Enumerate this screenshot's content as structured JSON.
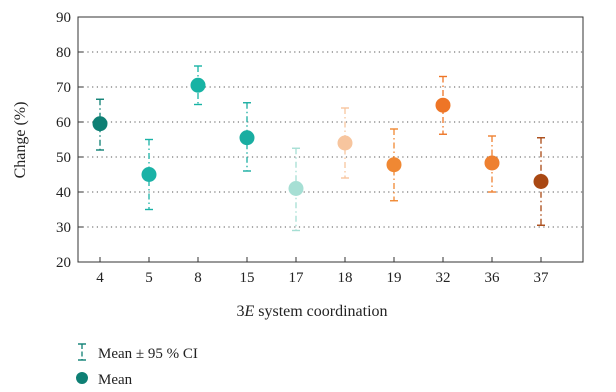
{
  "chart_data": {
    "type": "scatter",
    "xlabel_prefix": "3",
    "xlabel_italic": "E",
    "xlabel_suffix": " system coordination",
    "ylabel": "Change (%)",
    "ylim": [
      20,
      90
    ],
    "yticks": [
      20,
      30,
      40,
      50,
      60,
      70,
      80,
      90
    ],
    "grid": "horizontal dotted",
    "legend_position": "bottom-left",
    "legend": [
      {
        "symbol": "error-bar",
        "label": "Mean ± 95 % CI"
      },
      {
        "symbol": "dot",
        "label": "Mean"
      }
    ],
    "categories": [
      "4",
      "5",
      "8",
      "15",
      "17",
      "18",
      "19",
      "32",
      "36",
      "37"
    ],
    "mean": [
      59.5,
      45.0,
      70.5,
      55.5,
      41.0,
      54.0,
      47.8,
      64.8,
      48.3,
      43.0
    ],
    "lower": [
      52.0,
      35.0,
      65.0,
      46.0,
      29.0,
      44.0,
      37.5,
      56.5,
      40.0,
      30.5
    ],
    "upper": [
      66.5,
      55.0,
      76.0,
      65.5,
      52.5,
      64.0,
      58.0,
      73.0,
      56.0,
      55.5
    ],
    "colors": [
      "#0e7f74",
      "#1ab2a6",
      "#17b3a4",
      "#19ada1",
      "#a6dfd4",
      "#f7c59e",
      "#f08833",
      "#ee7526",
      "#ee8030",
      "#a94813"
    ],
    "legend_color": "#0e7f74"
  }
}
